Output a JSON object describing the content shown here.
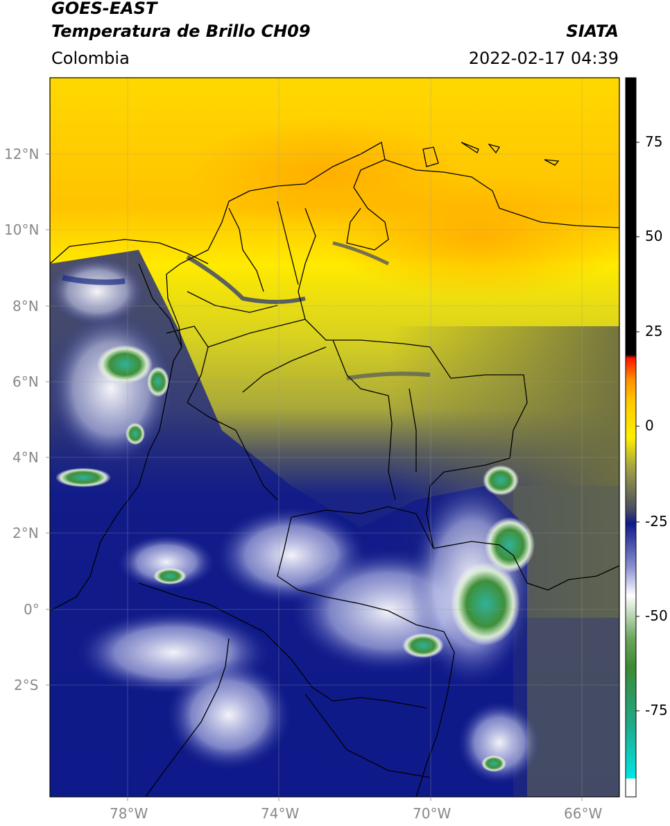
{
  "header": {
    "satellite": "GOES-EAST",
    "product": "Temperatura de Brillo CH09",
    "agency": "SIATA",
    "region": "Colombia",
    "datetime": "2022-02-17 04:39"
  },
  "map": {
    "lat_ticks": [
      "12°N",
      "10°N",
      "8°N",
      "6°N",
      "4°N",
      "2°N",
      "0°",
      "2°S"
    ],
    "lon_ticks": [
      "78°W",
      "74°W",
      "70°W",
      "66°W"
    ]
  },
  "colorbar": {
    "labels": [
      "75",
      "50",
      "25",
      "0",
      "-25",
      "-50",
      "-75"
    ],
    "colors": {
      "black": "#000000",
      "red": "#ff2200",
      "orange": "#ffa800",
      "yellow": "#ffee00",
      "olive": "#7a7a30",
      "navy": "#0f1a8a",
      "white": "#ffffff",
      "green": "#3f8f3a",
      "cyan": "#00e0e0"
    }
  }
}
